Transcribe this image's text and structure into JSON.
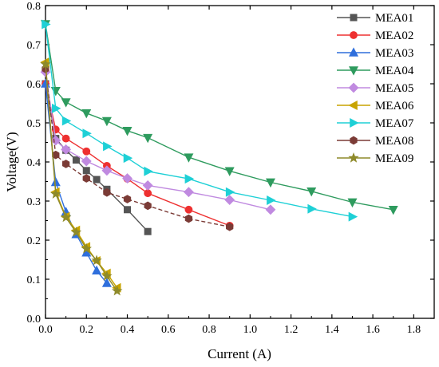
{
  "chart_data": {
    "type": "line",
    "title": "",
    "xlabel": "Current (A)",
    "ylabel": "Voltage(V)",
    "xlim": [
      0,
      1.9
    ],
    "ylim": [
      0,
      0.8
    ],
    "x_ticks": [
      0.0,
      0.2,
      0.4,
      0.6,
      0.8,
      1.0,
      1.2,
      1.4,
      1.6,
      1.8
    ],
    "y_ticks": [
      0.0,
      0.1,
      0.2,
      0.3,
      0.4,
      0.5,
      0.6,
      0.7,
      0.8
    ],
    "x_tick_labels": [
      "0.0",
      "0.2",
      "0.4",
      "0.6",
      "0.8",
      "1.0",
      "1.2",
      "1.4",
      "1.6",
      "1.8"
    ],
    "y_tick_labels": [
      "0.0",
      "0.1",
      "0.2",
      "0.3",
      "0.4",
      "0.5",
      "0.6",
      "0.7",
      "0.8"
    ],
    "grid": false,
    "legend_position": "top-right",
    "series": [
      {
        "name": "MEA01",
        "color": "#555555",
        "marker": "square",
        "points": [
          [
            0,
            0.6
          ],
          [
            0.05,
            0.46
          ],
          [
            0.1,
            0.43
          ],
          [
            0.15,
            0.405
          ],
          [
            0.2,
            0.378
          ],
          [
            0.25,
            0.355
          ],
          [
            0.3,
            0.33
          ],
          [
            0.4,
            0.278
          ],
          [
            0.5,
            0.222
          ]
        ]
      },
      {
        "name": "MEA02",
        "color": "#ee3030",
        "marker": "circle",
        "points": [
          [
            0,
            0.6
          ],
          [
            0.05,
            0.483
          ],
          [
            0.1,
            0.46
          ],
          [
            0.2,
            0.427
          ],
          [
            0.3,
            0.39
          ],
          [
            0.4,
            0.357
          ],
          [
            0.5,
            0.32
          ],
          [
            0.7,
            0.278
          ],
          [
            0.9,
            0.237
          ]
        ]
      },
      {
        "name": "MEA03",
        "color": "#2f6fdc",
        "marker": "triangle-up",
        "points": [
          [
            0,
            0.6
          ],
          [
            0.05,
            0.348
          ],
          [
            0.1,
            0.272
          ],
          [
            0.15,
            0.215
          ],
          [
            0.2,
            0.168
          ],
          [
            0.25,
            0.122
          ],
          [
            0.3,
            0.09
          ]
        ]
      },
      {
        "name": "MEA04",
        "color": "#2e9b5e",
        "marker": "triangle-down",
        "points": [
          [
            0,
            0.753
          ],
          [
            0.05,
            0.582
          ],
          [
            0.1,
            0.553
          ],
          [
            0.2,
            0.525
          ],
          [
            0.3,
            0.505
          ],
          [
            0.4,
            0.48
          ],
          [
            0.5,
            0.462
          ],
          [
            0.7,
            0.412
          ],
          [
            0.9,
            0.377
          ],
          [
            1.1,
            0.348
          ],
          [
            1.3,
            0.325
          ],
          [
            1.5,
            0.297
          ],
          [
            1.7,
            0.278
          ]
        ]
      },
      {
        "name": "MEA05",
        "color": "#c08ae0",
        "marker": "diamond",
        "points": [
          [
            0,
            0.63
          ],
          [
            0.05,
            0.455
          ],
          [
            0.1,
            0.432
          ],
          [
            0.2,
            0.402
          ],
          [
            0.3,
            0.378
          ],
          [
            0.4,
            0.358
          ],
          [
            0.5,
            0.34
          ],
          [
            0.7,
            0.323
          ],
          [
            0.9,
            0.303
          ],
          [
            1.1,
            0.278
          ]
        ]
      },
      {
        "name": "MEA06",
        "color": "#c8a400",
        "marker": "triangle-left",
        "points": [
          [
            0,
            0.655
          ],
          [
            0.05,
            0.323
          ],
          [
            0.1,
            0.26
          ],
          [
            0.15,
            0.225
          ],
          [
            0.2,
            0.183
          ],
          [
            0.25,
            0.147
          ],
          [
            0.3,
            0.115
          ],
          [
            0.35,
            0.078
          ]
        ]
      },
      {
        "name": "MEA07",
        "color": "#1ed0d6",
        "marker": "triangle-right",
        "points": [
          [
            0,
            0.752
          ],
          [
            0.05,
            0.537
          ],
          [
            0.1,
            0.505
          ],
          [
            0.2,
            0.473
          ],
          [
            0.3,
            0.44
          ],
          [
            0.4,
            0.41
          ],
          [
            0.5,
            0.376
          ],
          [
            0.7,
            0.357
          ],
          [
            0.9,
            0.323
          ],
          [
            1.1,
            0.302
          ],
          [
            1.3,
            0.28
          ],
          [
            1.5,
            0.26
          ]
        ]
      },
      {
        "name": "MEA08",
        "color": "#7b3b36",
        "marker": "hexagon",
        "dashed": true,
        "points": [
          [
            0,
            0.638
          ],
          [
            0.05,
            0.418
          ],
          [
            0.1,
            0.395
          ],
          [
            0.2,
            0.358
          ],
          [
            0.3,
            0.322
          ],
          [
            0.4,
            0.305
          ],
          [
            0.5,
            0.288
          ],
          [
            0.7,
            0.255
          ],
          [
            0.9,
            0.234
          ]
        ]
      },
      {
        "name": "MEA09",
        "color": "#8e8a2a",
        "marker": "star",
        "points": [
          [
            0,
            0.65
          ],
          [
            0.05,
            0.318
          ],
          [
            0.1,
            0.258
          ],
          [
            0.15,
            0.22
          ],
          [
            0.2,
            0.178
          ],
          [
            0.25,
            0.148
          ],
          [
            0.3,
            0.108
          ],
          [
            0.35,
            0.07
          ]
        ]
      }
    ]
  }
}
